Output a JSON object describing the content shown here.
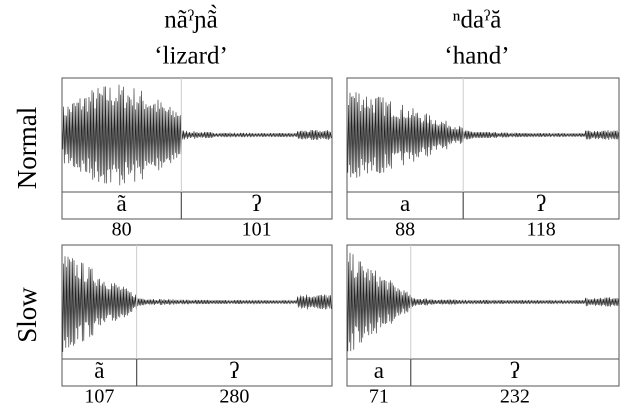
{
  "columns": [
    {
      "word": "nãˀɲã̀",
      "gloss": "‘lizard’"
    },
    {
      "word": "ⁿdaˀă",
      "gloss": "‘hand’"
    }
  ],
  "rows": [
    {
      "label": "Normal",
      "panels": [
        {
          "segments": [
            {
              "label": "ã",
              "duration": 80
            },
            {
              "label": "ʔ",
              "duration": 101
            }
          ]
        },
        {
          "segments": [
            {
              "label": "a",
              "duration": 88
            },
            {
              "label": "ʔ",
              "duration": 118
            }
          ]
        }
      ]
    },
    {
      "label": "Slow",
      "panels": [
        {
          "segments": [
            {
              "label": "ã",
              "duration": 107
            },
            {
              "label": "ʔ",
              "duration": 280
            }
          ]
        },
        {
          "segments": [
            {
              "label": "a",
              "duration": 71
            },
            {
              "label": "ʔ",
              "duration": 232
            }
          ]
        }
      ]
    }
  ]
}
